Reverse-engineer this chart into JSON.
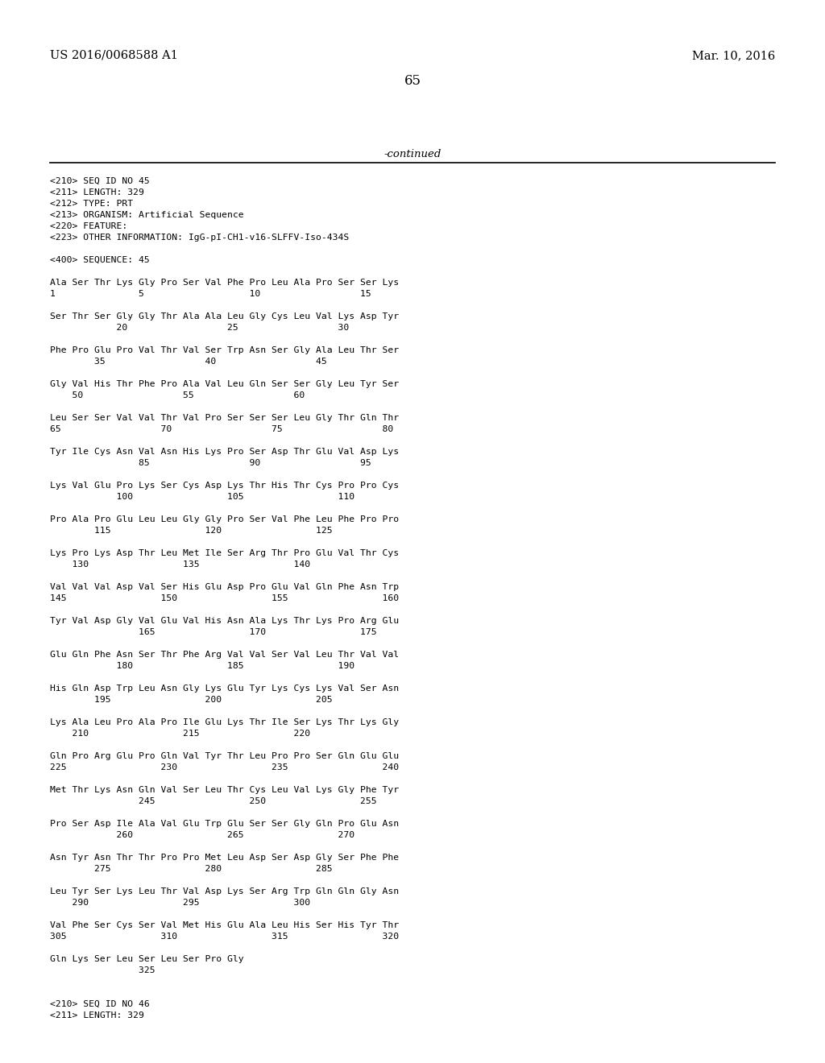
{
  "header_left": "US 2016/0068588 A1",
  "header_right": "Mar. 10, 2016",
  "page_number": "65",
  "continued_text": "-continued",
  "background_color": "#ffffff",
  "text_color": "#000000",
  "header_fontsize": 10.5,
  "page_num_fontsize": 12,
  "continued_fontsize": 9.5,
  "mono_fontsize": 8.2,
  "mono_lines": [
    "<210> SEQ ID NO 45",
    "<211> LENGTH: 329",
    "<212> TYPE: PRT",
    "<213> ORGANISM: Artificial Sequence",
    "<220> FEATURE:",
    "<223> OTHER INFORMATION: IgG-pI-CH1-v16-SLFFV-Iso-434S",
    "",
    "<400> SEQUENCE: 45",
    "",
    "Ala Ser Thr Lys Gly Pro Ser Val Phe Pro Leu Ala Pro Ser Ser Lys",
    "1               5                   10                  15",
    "",
    "Ser Thr Ser Gly Gly Thr Ala Ala Leu Gly Cys Leu Val Lys Asp Tyr",
    "            20                  25                  30",
    "",
    "Phe Pro Glu Pro Val Thr Val Ser Trp Asn Ser Gly Ala Leu Thr Ser",
    "        35                  40                  45",
    "",
    "Gly Val His Thr Phe Pro Ala Val Leu Gln Ser Ser Gly Leu Tyr Ser",
    "    50                  55                  60",
    "",
    "Leu Ser Ser Val Val Thr Val Pro Ser Ser Ser Leu Gly Thr Gln Thr",
    "65                  70                  75                  80",
    "",
    "Tyr Ile Cys Asn Val Asn His Lys Pro Ser Asp Thr Glu Val Asp Lys",
    "                85                  90                  95",
    "",
    "Lys Val Glu Pro Lys Ser Cys Asp Lys Thr His Thr Cys Pro Pro Cys",
    "            100                 105                 110",
    "",
    "Pro Ala Pro Glu Leu Leu Gly Gly Pro Ser Val Phe Leu Phe Pro Pro",
    "        115                 120                 125",
    "",
    "Lys Pro Lys Asp Thr Leu Met Ile Ser Arg Thr Pro Glu Val Thr Cys",
    "    130                 135                 140",
    "",
    "Val Val Val Asp Val Ser His Glu Asp Pro Glu Val Gln Phe Asn Trp",
    "145                 150                 155                 160",
    "",
    "Tyr Val Asp Gly Val Glu Val His Asn Ala Lys Thr Lys Pro Arg Glu",
    "                165                 170                 175",
    "",
    "Glu Gln Phe Asn Ser Thr Phe Arg Val Val Ser Val Leu Thr Val Val",
    "            180                 185                 190",
    "",
    "His Gln Asp Trp Leu Asn Gly Lys Glu Tyr Lys Cys Lys Val Ser Asn",
    "        195                 200                 205",
    "",
    "Lys Ala Leu Pro Ala Pro Ile Glu Lys Thr Ile Ser Lys Thr Lys Gly",
    "    210                 215                 220",
    "",
    "Gln Pro Arg Glu Pro Gln Val Tyr Thr Leu Pro Pro Ser Gln Glu Glu",
    "225                 230                 235                 240",
    "",
    "Met Thr Lys Asn Gln Val Ser Leu Thr Cys Leu Val Lys Gly Phe Tyr",
    "                245                 250                 255",
    "",
    "Pro Ser Asp Ile Ala Val Glu Trp Glu Ser Ser Gly Gln Pro Glu Asn",
    "            260                 265                 270",
    "",
    "Asn Tyr Asn Thr Thr Pro Pro Met Leu Asp Ser Asp Gly Ser Phe Phe",
    "        275                 280                 285",
    "",
    "Leu Tyr Ser Lys Leu Thr Val Asp Lys Ser Arg Trp Gln Gln Gly Asn",
    "    290                 295                 300",
    "",
    "Val Phe Ser Cys Ser Val Met His Glu Ala Leu His Ser His Tyr Thr",
    "305                 310                 315                 320",
    "",
    "Gln Lys Ser Leu Ser Leu Ser Pro Gly",
    "                325",
    "",
    "",
    "<210> SEQ ID NO 46",
    "<211> LENGTH: 329"
  ]
}
